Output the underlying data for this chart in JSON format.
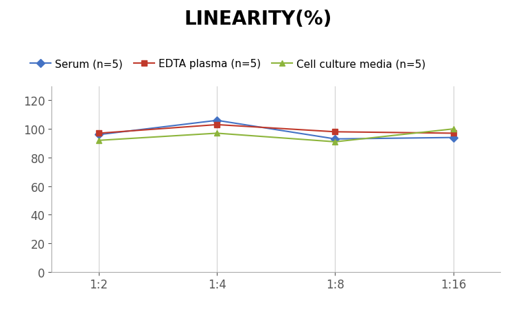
{
  "title": "LINEARITY(%)",
  "x_labels": [
    "1:2",
    "1:4",
    "1:8",
    "1:16"
  ],
  "series": [
    {
      "label": "Serum (n=5)",
      "color": "#4472c4",
      "marker": "D",
      "marker_color": "#4472c4",
      "values": [
        96,
        106,
        93,
        94
      ]
    },
    {
      "label": "EDTA plasma (n=5)",
      "color": "#c0392b",
      "marker": "s",
      "marker_color": "#c0392b",
      "values": [
        97,
        103,
        98,
        97
      ]
    },
    {
      "label": "Cell culture media (n=5)",
      "color": "#8db53c",
      "marker": "^",
      "marker_color": "#8db53c",
      "values": [
        92,
        97,
        91,
        100
      ]
    }
  ],
  "ylim": [
    0,
    130
  ],
  "yticks": [
    0,
    20,
    40,
    60,
    80,
    100,
    120
  ],
  "title_fontsize": 20,
  "legend_fontsize": 11,
  "tick_fontsize": 12,
  "background_color": "#ffffff",
  "grid_color": "#d0d0d0"
}
